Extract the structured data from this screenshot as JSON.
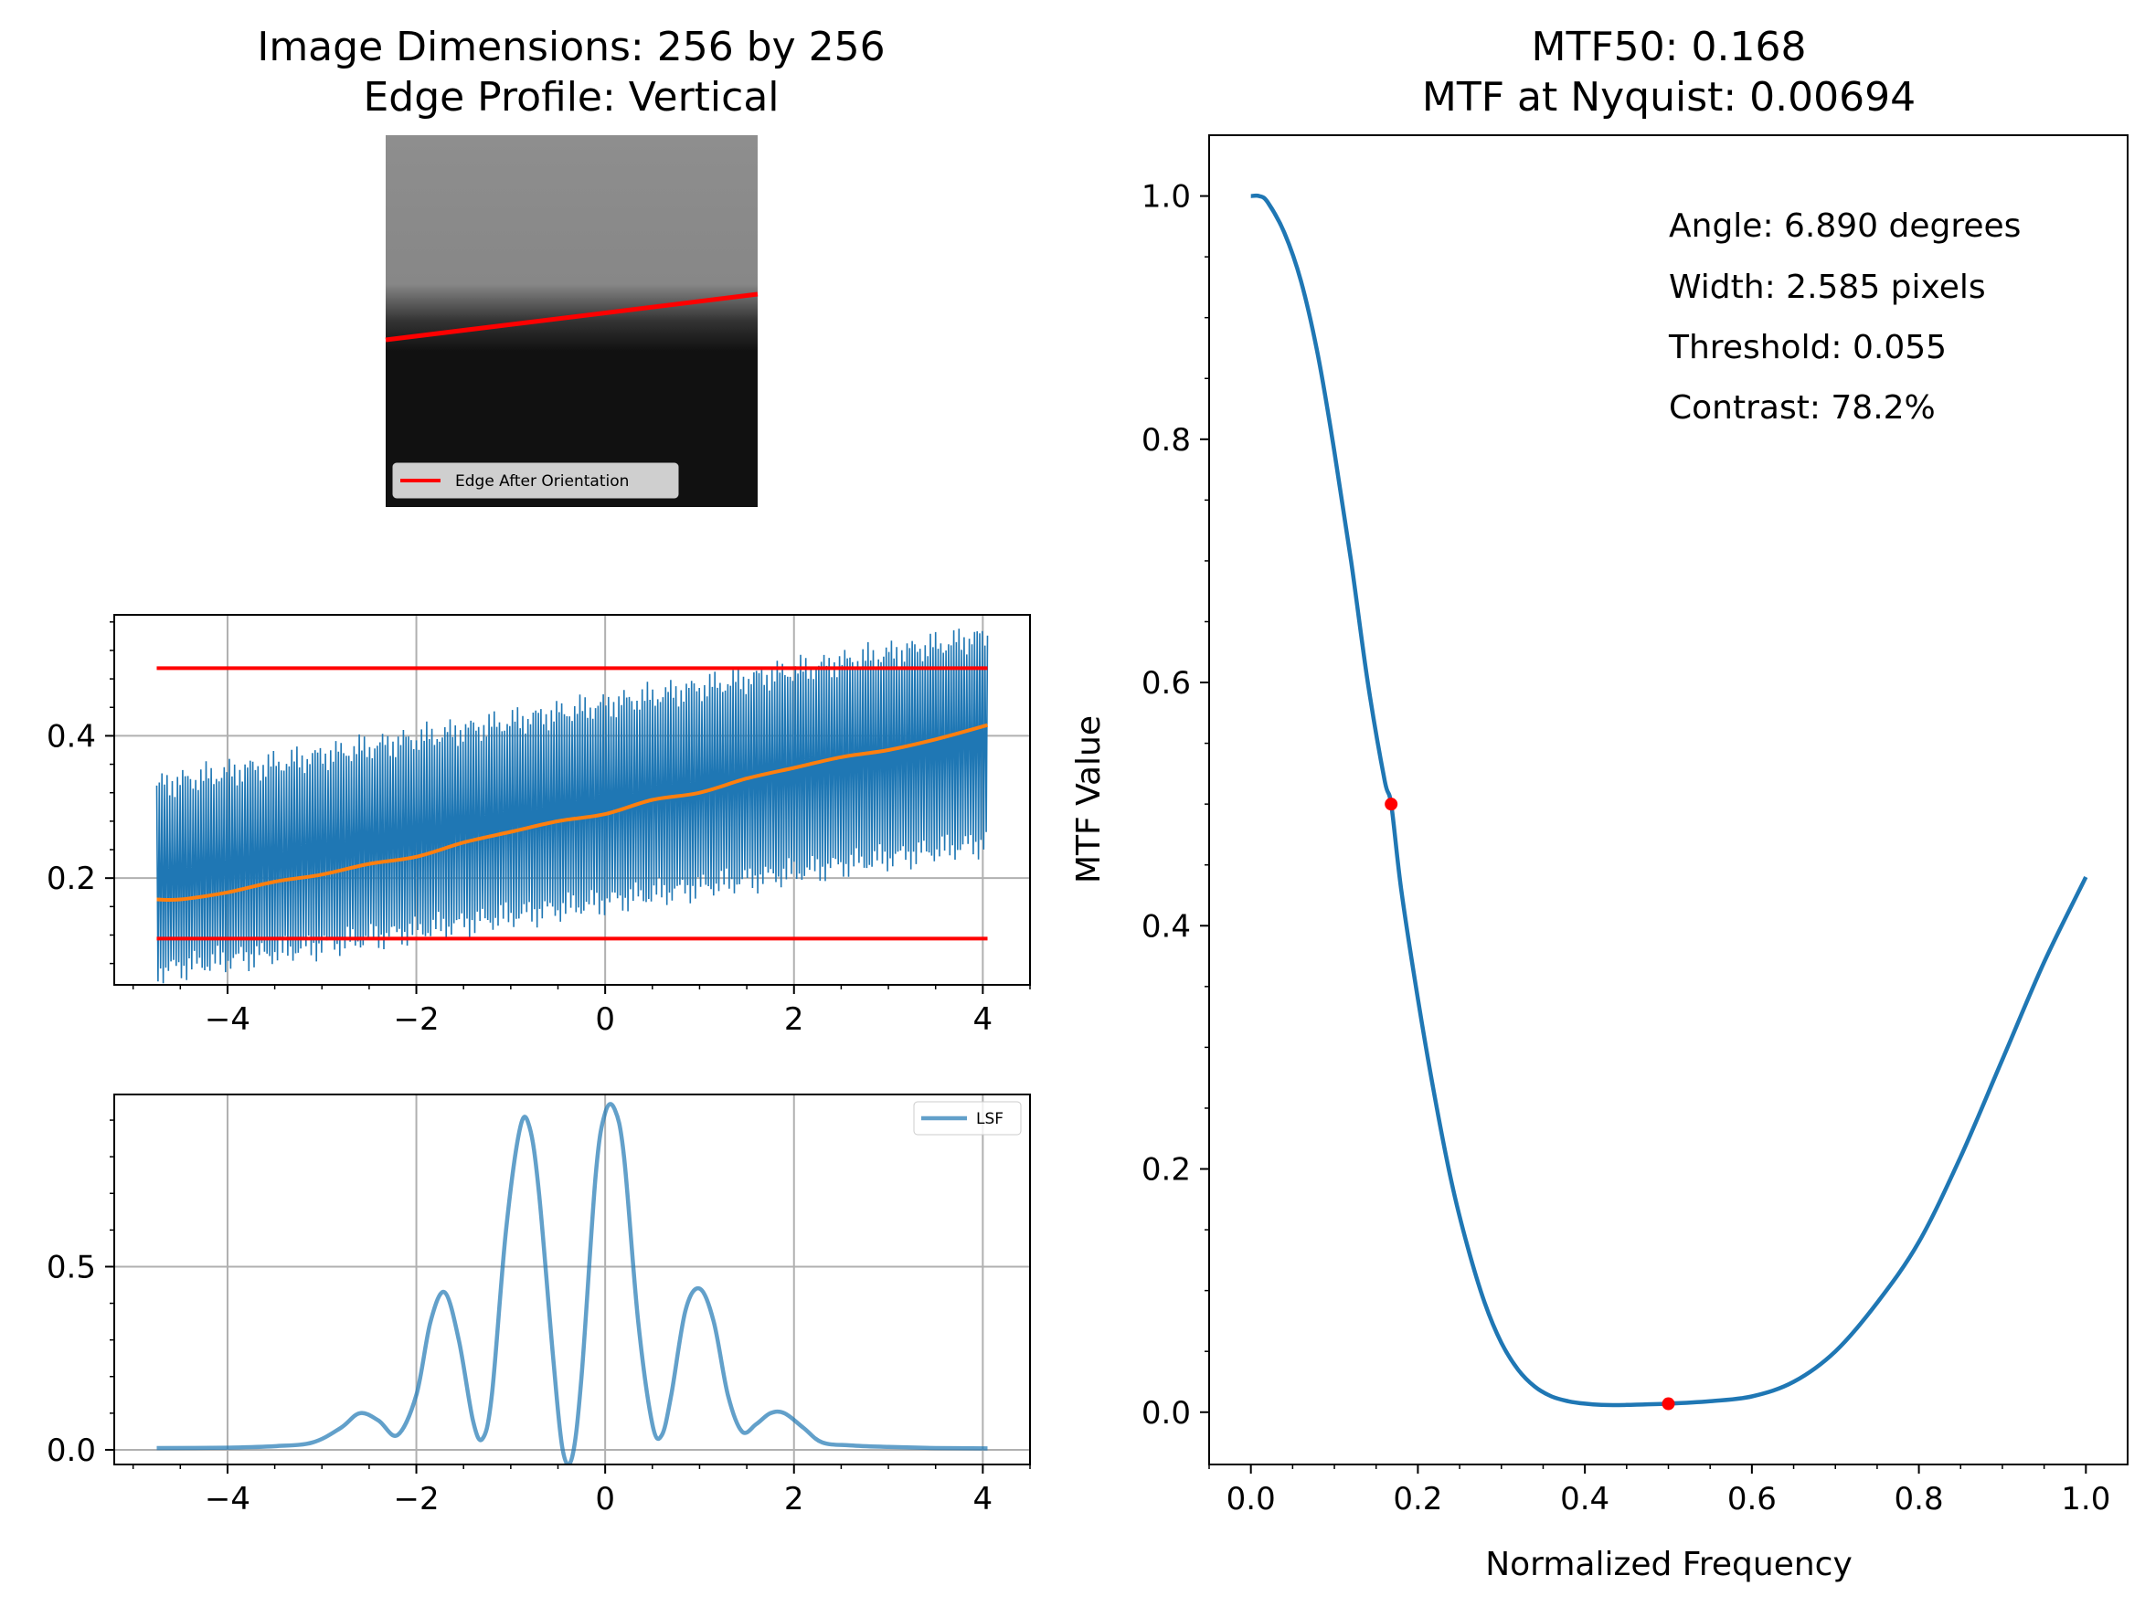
{
  "image_panel": {
    "title_line1": "Image Dimensions: 256 by 256",
    "title_line2": "Edge Profile: Vertical",
    "legend_label": "Edge After Orientation",
    "edge_color": "#ff0000",
    "upper_gray": "#8e8e8e",
    "lower_gray": "#111111"
  },
  "mtf_panel": {
    "title_line1": "MTF50: 0.168",
    "title_line2": "MTF at Nyquist: 0.00694",
    "annotations": [
      "Angle: 6.890 degrees",
      "Width: 2.585 pixels",
      "Threshold: 0.055",
      "Contrast: 78.2%"
    ]
  },
  "colors": {
    "series_blue": "#1f77b4",
    "series_orange": "#ff7f0e",
    "marker_red": "#ff0000",
    "grid": "#b0b0b0"
  },
  "chart_data": [
    {
      "type": "line",
      "panel": "edge-spread",
      "xlim": [
        -5.2,
        4.5
      ],
      "ylim": [
        0.05,
        0.57
      ],
      "xticks": [
        "−4",
        "−2",
        "0",
        "2",
        "4"
      ],
      "xtick_values": [
        -4,
        -2,
        0,
        2,
        4
      ],
      "yticks": [
        "0.2",
        "0.4"
      ],
      "ytick_values": [
        0.2,
        0.4
      ],
      "grid": true,
      "series": [
        {
          "role": "raw-esf",
          "x_range": [
            -4.75,
            4.05
          ],
          "y_low_start": 0.07,
          "y_low_end": 0.25,
          "y_high_start": 0.33,
          "y_high_end": 0.54
        },
        {
          "role": "smoothed-esf",
          "x": [
            -4.75,
            -4.5,
            -4.0,
            -3.5,
            -3.0,
            -2.5,
            -2.0,
            -1.5,
            -1.0,
            -0.5,
            0.0,
            0.5,
            1.0,
            1.5,
            2.0,
            2.5,
            3.0,
            3.5,
            4.05
          ],
          "y": [
            0.17,
            0.17,
            0.18,
            0.195,
            0.205,
            0.22,
            0.23,
            0.25,
            0.265,
            0.28,
            0.29,
            0.31,
            0.32,
            0.34,
            0.355,
            0.37,
            0.38,
            0.395,
            0.415
          ]
        },
        {
          "role": "upper-threshold",
          "x": [
            -4.75,
            4.05
          ],
          "y": [
            0.495,
            0.495
          ]
        },
        {
          "role": "lower-threshold",
          "x": [
            -4.75,
            4.05
          ],
          "y": [
            0.115,
            0.115
          ]
        }
      ]
    },
    {
      "type": "line",
      "panel": "line-spread",
      "xlim": [
        -5.2,
        4.5
      ],
      "ylim": [
        -0.04,
        0.97
      ],
      "xticks": [
        "−4",
        "−2",
        "0",
        "2",
        "4"
      ],
      "xtick_values": [
        -4,
        -2,
        0,
        2,
        4
      ],
      "yticks": [
        "0.0",
        "0.5"
      ],
      "ytick_values": [
        0.0,
        0.5
      ],
      "grid": true,
      "legend": "top-right",
      "series": [
        {
          "name": "LSF",
          "x": [
            -4.75,
            -4.0,
            -3.5,
            -3.1,
            -2.8,
            -2.6,
            -2.4,
            -2.2,
            -2.0,
            -1.85,
            -1.7,
            -1.55,
            -1.4,
            -1.3,
            -1.2,
            -1.05,
            -0.9,
            -0.8,
            -0.7,
            -0.55,
            -0.45,
            -0.35,
            -0.25,
            -0.1,
            0.0,
            0.1,
            0.2,
            0.35,
            0.5,
            0.6,
            0.7,
            0.85,
            1.0,
            1.15,
            1.3,
            1.45,
            1.6,
            1.75,
            1.9,
            2.1,
            2.3,
            2.6,
            3.0,
            3.5,
            4.05
          ],
          "y": [
            0.005,
            0.006,
            0.01,
            0.02,
            0.06,
            0.1,
            0.08,
            0.04,
            0.15,
            0.35,
            0.43,
            0.3,
            0.08,
            0.03,
            0.15,
            0.6,
            0.88,
            0.88,
            0.7,
            0.25,
            0.0,
            -0.02,
            0.2,
            0.75,
            0.92,
            0.93,
            0.8,
            0.35,
            0.07,
            0.04,
            0.15,
            0.38,
            0.44,
            0.35,
            0.15,
            0.05,
            0.07,
            0.1,
            0.1,
            0.06,
            0.02,
            0.012,
            0.008,
            0.005,
            0.004
          ]
        }
      ]
    },
    {
      "type": "line",
      "panel": "mtf",
      "xlabel": "Normalized Frequency",
      "ylabel": "MTF Value",
      "xlim": [
        -0.05,
        1.05
      ],
      "ylim": [
        -0.043,
        1.05
      ],
      "xticks": [
        "0.0",
        "0.2",
        "0.4",
        "0.6",
        "0.8",
        "1.0"
      ],
      "xtick_values": [
        0.0,
        0.2,
        0.4,
        0.6,
        0.8,
        1.0
      ],
      "yticks": [
        "0.0",
        "0.2",
        "0.4",
        "0.6",
        "0.8",
        "1.0"
      ],
      "ytick_values": [
        0.0,
        0.2,
        0.4,
        0.6,
        0.8,
        1.0
      ],
      "grid": false,
      "series": [
        {
          "role": "mtf-curve",
          "x": [
            0.0,
            0.01,
            0.02,
            0.04,
            0.06,
            0.08,
            0.1,
            0.12,
            0.14,
            0.16,
            0.168,
            0.18,
            0.2,
            0.22,
            0.24,
            0.26,
            0.28,
            0.3,
            0.32,
            0.34,
            0.36,
            0.38,
            0.4,
            0.42,
            0.45,
            0.5,
            0.55,
            0.6,
            0.65,
            0.7,
            0.75,
            0.8,
            0.85,
            0.9,
            0.95,
            1.0
          ],
          "y": [
            1.0,
            1.0,
            0.995,
            0.97,
            0.93,
            0.87,
            0.79,
            0.7,
            0.6,
            0.52,
            0.5,
            0.43,
            0.34,
            0.26,
            0.19,
            0.135,
            0.09,
            0.057,
            0.035,
            0.021,
            0.013,
            0.009,
            0.007,
            0.006,
            0.006,
            0.007,
            0.009,
            0.013,
            0.025,
            0.05,
            0.09,
            0.14,
            0.21,
            0.29,
            0.37,
            0.44
          ]
        },
        {
          "role": "marked-points",
          "x": [
            0.168,
            0.5
          ],
          "y": [
            0.5,
            0.00694
          ]
        }
      ]
    }
  ]
}
